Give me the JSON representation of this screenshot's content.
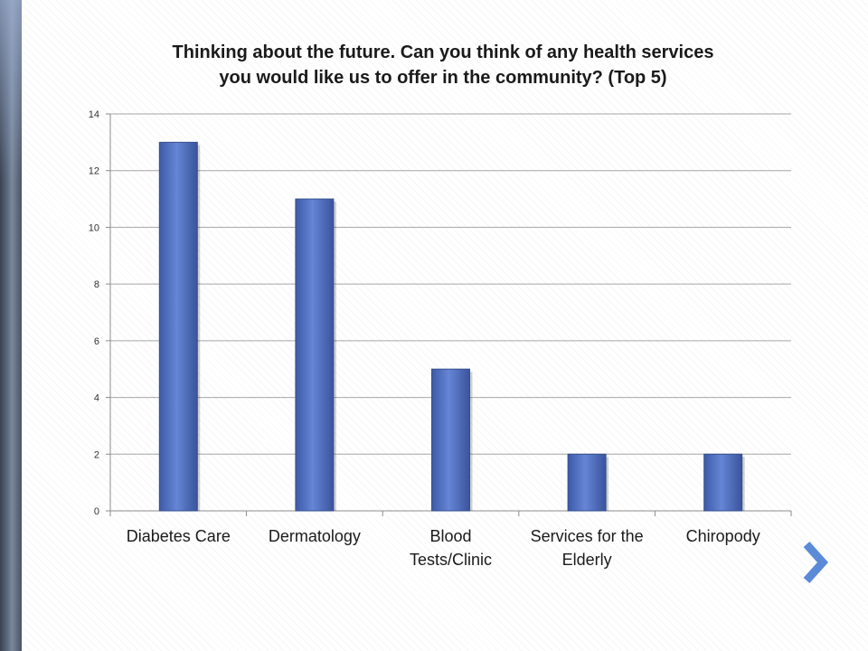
{
  "slide": {
    "accent_color": "#5b7fc9",
    "nav_icon": "chevron-right-icon"
  },
  "chart_data": {
    "type": "bar",
    "title": "Thinking about the future. Can you think of any health services\nyou would like us to offer in the community?  (Top 5)",
    "categories": [
      "Diabetes Care",
      "Dermatology",
      "Blood Tests/Clinic",
      "Services for the Elderly",
      "Chiropody"
    ],
    "category_lines": [
      [
        "Diabetes Care"
      ],
      [
        "Dermatology"
      ],
      [
        "Blood",
        "Tests/Clinic"
      ],
      [
        "Services for the",
        "Elderly"
      ],
      [
        "Chiropody"
      ]
    ],
    "values": [
      13,
      11,
      5,
      2,
      2
    ],
    "ylim": [
      0,
      14
    ],
    "yticks": [
      "0",
      "2",
      "4",
      "6",
      "8",
      "10",
      "12",
      "14"
    ],
    "grid": true,
    "legend": "none",
    "bar_color": "#4f6fbf"
  }
}
